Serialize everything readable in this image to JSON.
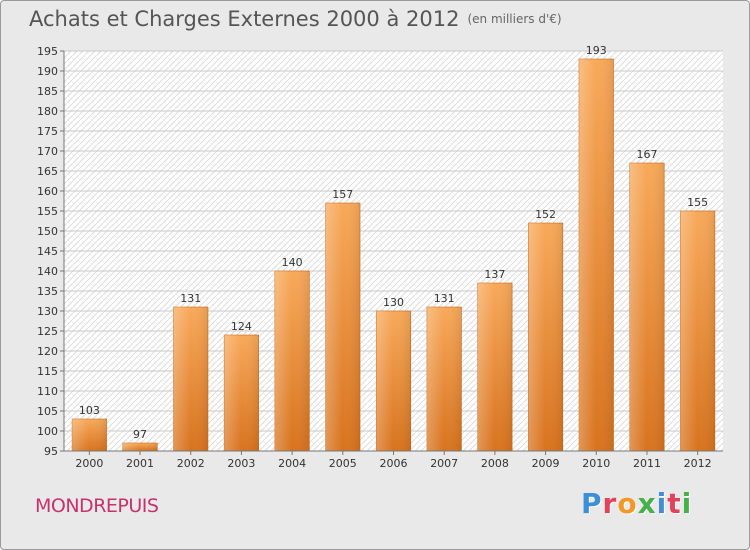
{
  "header": {
    "title": "Achats et Charges Externes 2000 à 2012",
    "subtitle": "(en milliers d'€)"
  },
  "footer": {
    "commune": "MONDREPUIS",
    "brand": [
      "P",
      "r",
      "o",
      "x",
      "i",
      "t",
      "i"
    ]
  },
  "colors": {
    "bar": "#f0933b",
    "bar_light": "#f8a95a",
    "bar_dark": "#d8731e",
    "commune_text": "#c8326a",
    "brand_letters": [
      "#3f8fd8",
      "#e2425a",
      "#f09a25",
      "#46b04a",
      "#3f8fd8",
      "#e2425a",
      "#46b04a"
    ]
  },
  "chart_data": {
    "type": "bar",
    "title": "Achats et Charges Externes 2000 à 2012",
    "subtitle": "(en milliers d'€)",
    "categories": [
      "2000",
      "2001",
      "2002",
      "2003",
      "2004",
      "2005",
      "2006",
      "2007",
      "2008",
      "2009",
      "2010",
      "2011",
      "2012"
    ],
    "values": [
      103,
      97,
      131,
      124,
      140,
      157,
      130,
      131,
      137,
      152,
      193,
      167,
      155
    ],
    "ylim": [
      95,
      195
    ],
    "ytick_step": 5,
    "grid": true,
    "xlabel": "",
    "ylabel": ""
  }
}
